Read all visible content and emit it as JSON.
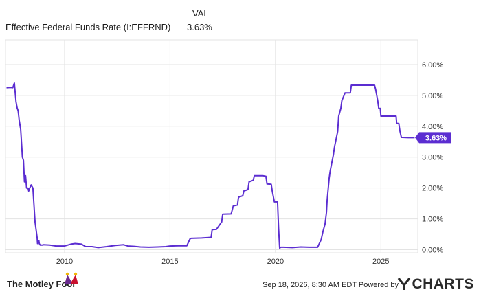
{
  "header": {
    "column_label": "VAL",
    "series_name": "Effective Federal Funds Rate (I:EFFRND)",
    "series_value": "3.63%"
  },
  "footer": {
    "brand": "The Motley Fool",
    "timestamp": "Sep 18, 2026, 8:30 AM EDT",
    "powered_by": "Powered by",
    "provider": "CHARTS",
    "provider_icon": "ycharts-y-icon",
    "brand_icon": "jester-hat-icon"
  },
  "chart_data": {
    "type": "line",
    "title": "",
    "xlabel": "",
    "ylabel": "",
    "x_ticks": [
      2010,
      2015,
      2020,
      2025
    ],
    "x_tick_labels": [
      "2010",
      "2015",
      "2020",
      "2025"
    ],
    "y_ticks": [
      0,
      1,
      2,
      3,
      4,
      5,
      6
    ],
    "y_tick_labels": [
      "0.00%",
      "1.00%",
      "2.00%",
      "3.00%",
      "4.00%",
      "5.00%",
      "6.00%"
    ],
    "xlim": [
      2007.2,
      2026.75
    ],
    "ylim": [
      -0.1,
      6.8
    ],
    "grid": true,
    "last_value_label": "3.63%",
    "colors": {
      "line": "#5b2dd1",
      "grid": "#e3e3e3",
      "axis_text": "#333333"
    },
    "series": [
      {
        "x": [
          2007.25,
          2007.45,
          2007.55,
          2007.62,
          2007.66,
          2007.7,
          2007.75,
          2007.8,
          2007.85,
          2007.92,
          2008.0,
          2008.05,
          2008.1,
          2008.15,
          2008.2,
          2008.27,
          2008.3,
          2008.35,
          2008.42,
          2008.5,
          2008.6,
          2008.7,
          2008.72,
          2008.78,
          2008.8,
          2008.85,
          2008.9,
          2008.95,
          2009.0,
          2009.3,
          2009.6,
          2010.0,
          2010.3,
          2010.5,
          2010.8,
          2011.0,
          2011.3,
          2011.6,
          2012.0,
          2012.4,
          2012.8,
          2013.0,
          2013.3,
          2013.6,
          2014.0,
          2014.4,
          2014.8,
          2015.0,
          2015.4,
          2015.8,
          2015.95,
          2016.0,
          2016.5,
          2016.95,
          2017.0,
          2017.2,
          2017.45,
          2017.5,
          2017.9,
          2018.0,
          2018.2,
          2018.25,
          2018.45,
          2018.5,
          2018.7,
          2018.75,
          2018.95,
          2019.0,
          2019.4,
          2019.55,
          2019.6,
          2019.8,
          2019.85,
          2019.95,
          2020.1,
          2020.15,
          2020.2,
          2020.25,
          2020.4,
          2020.8,
          2021.2,
          2021.6,
          2021.9,
          2022.0,
          2022.17,
          2022.25,
          2022.35,
          2022.42,
          2022.45,
          2022.55,
          2022.6,
          2022.75,
          2022.8,
          2022.95,
          2023.0,
          2023.1,
          2023.15,
          2023.3,
          2023.4,
          2023.55,
          2023.6,
          2024.0,
          2024.5,
          2024.7,
          2024.75,
          2024.85,
          2024.9,
          2024.97,
          2025.0,
          2025.3,
          2025.6,
          2025.72,
          2025.75,
          2025.85,
          2025.9,
          2025.97,
          2026.0,
          2026.3,
          2026.6
        ],
        "y": [
          5.25,
          5.26,
          5.25,
          5.4,
          5.1,
          4.8,
          4.6,
          4.5,
          4.2,
          3.9,
          3.0,
          2.9,
          2.2,
          2.4,
          2.0,
          2.0,
          1.9,
          2.0,
          2.1,
          2.0,
          0.9,
          0.4,
          0.2,
          0.3,
          0.2,
          0.15,
          0.15,
          0.15,
          0.16,
          0.15,
          0.12,
          0.12,
          0.18,
          0.2,
          0.18,
          0.1,
          0.1,
          0.07,
          0.1,
          0.14,
          0.16,
          0.12,
          0.11,
          0.09,
          0.08,
          0.09,
          0.1,
          0.12,
          0.13,
          0.13,
          0.35,
          0.37,
          0.38,
          0.4,
          0.65,
          0.66,
          0.9,
          1.15,
          1.16,
          1.42,
          1.45,
          1.7,
          1.75,
          1.9,
          1.95,
          2.2,
          2.25,
          2.4,
          2.4,
          2.38,
          2.13,
          2.12,
          1.9,
          1.55,
          1.55,
          0.7,
          0.05,
          0.08,
          0.08,
          0.07,
          0.09,
          0.08,
          0.08,
          0.08,
          0.33,
          0.58,
          0.83,
          1.21,
          1.58,
          2.33,
          2.56,
          3.08,
          3.33,
          3.83,
          4.33,
          4.58,
          4.83,
          5.08,
          5.08,
          5.08,
          5.33,
          5.33,
          5.33,
          5.33,
          5.2,
          4.83,
          4.58,
          4.58,
          4.33,
          4.33,
          4.33,
          4.33,
          4.09,
          4.09,
          3.86,
          3.64,
          3.64,
          3.63,
          3.63
        ]
      }
    ]
  }
}
